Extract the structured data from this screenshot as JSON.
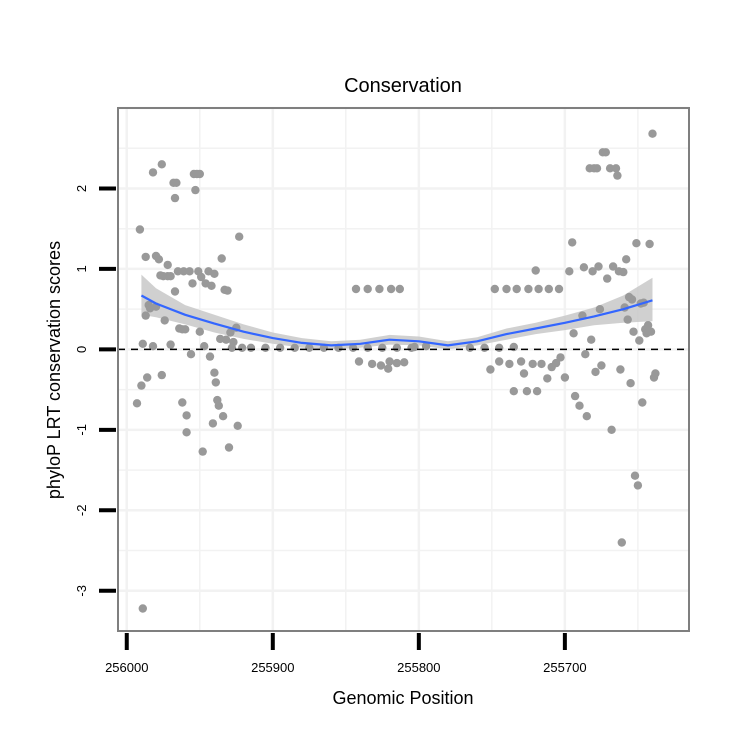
{
  "chart_data": {
    "type": "scatter",
    "title": "Conservation",
    "xlabel": "Genomic Position",
    "ylabel": "phyloP LRT conservation scores",
    "xlim": [
      256006,
      255615
    ],
    "x_reversed": true,
    "ylim": [
      -3.5,
      3.0
    ],
    "x_ticks": [
      256000,
      255900,
      255800,
      255700
    ],
    "y_ticks": [
      -3,
      -2,
      -1,
      0,
      1,
      2
    ],
    "grid": true,
    "reference_line": {
      "y": 0,
      "style": "dashed",
      "color": "#000000"
    },
    "colors": {
      "points": "#999999",
      "smooth": "#3366ff",
      "ribbon": "#c8c8c8",
      "panel_border": "#7f7f7f",
      "grid": "#f2f2f2"
    },
    "smooth_curve": {
      "x": [
        255990,
        255980,
        255960,
        255940,
        255920,
        255900,
        255880,
        255860,
        255840,
        255820,
        255800,
        255780,
        255760,
        255740,
        255720,
        255700,
        255680,
        255660,
        255640
      ],
      "y": [
        0.67,
        0.57,
        0.43,
        0.32,
        0.22,
        0.14,
        0.08,
        0.05,
        0.07,
        0.12,
        0.1,
        0.05,
        0.1,
        0.19,
        0.26,
        0.33,
        0.41,
        0.5,
        0.61
      ],
      "lower": [
        0.43,
        0.4,
        0.31,
        0.21,
        0.13,
        0.07,
        0.02,
        0.0,
        0.02,
        0.06,
        0.05,
        0.0,
        0.05,
        0.12,
        0.19,
        0.24,
        0.3,
        0.33,
        0.35
      ],
      "upper": [
        0.93,
        0.76,
        0.55,
        0.43,
        0.31,
        0.21,
        0.14,
        0.1,
        0.12,
        0.18,
        0.16,
        0.1,
        0.15,
        0.26,
        0.33,
        0.42,
        0.52,
        0.67,
        0.89
      ]
    },
    "points": [
      {
        "x": 255993,
        "y": -0.67
      },
      {
        "x": 255991,
        "y": 1.49
      },
      {
        "x": 255990,
        "y": -0.45
      },
      {
        "x": 255989,
        "y": 0.07
      },
      {
        "x": 255989,
        "y": -3.22
      },
      {
        "x": 255987,
        "y": 1.15
      },
      {
        "x": 255987,
        "y": 0.42
      },
      {
        "x": 255986,
        "y": -0.35
      },
      {
        "x": 255985,
        "y": 0.55
      },
      {
        "x": 255984,
        "y": 0.51
      },
      {
        "x": 255982,
        "y": 2.2
      },
      {
        "x": 255982,
        "y": 0.04
      },
      {
        "x": 255980,
        "y": 1.16
      },
      {
        "x": 255980,
        "y": 0.53
      },
      {
        "x": 255978,
        "y": 1.12
      },
      {
        "x": 255977,
        "y": 0.92
      },
      {
        "x": 255976,
        "y": 2.3
      },
      {
        "x": 255976,
        "y": -0.32
      },
      {
        "x": 255975,
        "y": 0.91
      },
      {
        "x": 255974,
        "y": 0.36
      },
      {
        "x": 255972,
        "y": 0.91
      },
      {
        "x": 255972,
        "y": 1.05
      },
      {
        "x": 255970,
        "y": 0.91
      },
      {
        "x": 255970,
        "y": 0.06
      },
      {
        "x": 255968,
        "y": 2.07
      },
      {
        "x": 255967,
        "y": 1.88
      },
      {
        "x": 255967,
        "y": 0.72
      },
      {
        "x": 255966,
        "y": 2.07
      },
      {
        "x": 255965,
        "y": 0.97
      },
      {
        "x": 255964,
        "y": 0.26
      },
      {
        "x": 255962,
        "y": 0.25
      },
      {
        "x": 255962,
        "y": -0.66
      },
      {
        "x": 255961,
        "y": 0.97
      },
      {
        "x": 255960,
        "y": 0.25
      },
      {
        "x": 255959,
        "y": -1.03
      },
      {
        "x": 255959,
        "y": -0.82
      },
      {
        "x": 255957,
        "y": 0.97
      },
      {
        "x": 255956,
        "y": -0.06
      },
      {
        "x": 255955,
        "y": 0.82
      },
      {
        "x": 255954,
        "y": 2.18
      },
      {
        "x": 255953,
        "y": 1.98
      },
      {
        "x": 255952,
        "y": 2.18
      },
      {
        "x": 255951,
        "y": 0.97
      },
      {
        "x": 255950,
        "y": 2.18
      },
      {
        "x": 255950,
        "y": 0.22
      },
      {
        "x": 255949,
        "y": 0.9
      },
      {
        "x": 255948,
        "y": -1.27
      },
      {
        "x": 255947,
        "y": 0.04
      },
      {
        "x": 255946,
        "y": 0.82
      },
      {
        "x": 255944,
        "y": 0.97
      },
      {
        "x": 255943,
        "y": -0.09
      },
      {
        "x": 255942,
        "y": 0.79
      },
      {
        "x": 255941,
        "y": -0.92
      },
      {
        "x": 255940,
        "y": 0.94
      },
      {
        "x": 255940,
        "y": -0.29
      },
      {
        "x": 255939,
        "y": -0.41
      },
      {
        "x": 255938,
        "y": -0.63
      },
      {
        "x": 255937,
        "y": -0.7
      },
      {
        "x": 255936,
        "y": 0.13
      },
      {
        "x": 255935,
        "y": 1.13
      },
      {
        "x": 255934,
        "y": -0.83
      },
      {
        "x": 255933,
        "y": 0.74
      },
      {
        "x": 255932,
        "y": 0.12
      },
      {
        "x": 255931,
        "y": 0.73
      },
      {
        "x": 255930,
        "y": -1.22
      },
      {
        "x": 255929,
        "y": 0.21
      },
      {
        "x": 255928,
        "y": 0.02
      },
      {
        "x": 255927,
        "y": 0.09
      },
      {
        "x": 255925,
        "y": 0.27
      },
      {
        "x": 255924,
        "y": -0.95
      },
      {
        "x": 255923,
        "y": 1.4
      },
      {
        "x": 255921,
        "y": 0.02
      },
      {
        "x": 255915,
        "y": 0.02
      },
      {
        "x": 255905,
        "y": 0.02
      },
      {
        "x": 255895,
        "y": 0.02
      },
      {
        "x": 255885,
        "y": 0.02
      },
      {
        "x": 255875,
        "y": 0.02
      },
      {
        "x": 255865,
        "y": 0.02
      },
      {
        "x": 255855,
        "y": 0.02
      },
      {
        "x": 255845,
        "y": 0.02
      },
      {
        "x": 255835,
        "y": 0.02
      },
      {
        "x": 255825,
        "y": 0.02
      },
      {
        "x": 255815,
        "y": 0.02
      },
      {
        "x": 255805,
        "y": 0.02
      },
      {
        "x": 255843,
        "y": 0.75
      },
      {
        "x": 255835,
        "y": 0.75
      },
      {
        "x": 255827,
        "y": 0.75
      },
      {
        "x": 255819,
        "y": 0.75
      },
      {
        "x": 255813,
        "y": 0.75
      },
      {
        "x": 255841,
        "y": -0.15
      },
      {
        "x": 255832,
        "y": -0.18
      },
      {
        "x": 255826,
        "y": -0.2
      },
      {
        "x": 255820,
        "y": -0.15
      },
      {
        "x": 255815,
        "y": -0.17
      },
      {
        "x": 255810,
        "y": -0.16
      },
      {
        "x": 255821,
        "y": -0.24
      },
      {
        "x": 255803,
        "y": 0.03
      },
      {
        "x": 255795,
        "y": 0.04
      },
      {
        "x": 255765,
        "y": 0.02
      },
      {
        "x": 255755,
        "y": 0.02
      },
      {
        "x": 255745,
        "y": 0.02
      },
      {
        "x": 255735,
        "y": 0.03
      },
      {
        "x": 255748,
        "y": 0.75
      },
      {
        "x": 255740,
        "y": 0.75
      },
      {
        "x": 255733,
        "y": 0.75
      },
      {
        "x": 255725,
        "y": 0.75
      },
      {
        "x": 255718,
        "y": 0.75
      },
      {
        "x": 255711,
        "y": 0.75
      },
      {
        "x": 255704,
        "y": 0.75
      },
      {
        "x": 255751,
        "y": -0.25
      },
      {
        "x": 255745,
        "y": -0.15
      },
      {
        "x": 255738,
        "y": -0.18
      },
      {
        "x": 255735,
        "y": -0.52
      },
      {
        "x": 255730,
        "y": -0.15
      },
      {
        "x": 255728,
        "y": -0.3
      },
      {
        "x": 255726,
        "y": -0.52
      },
      {
        "x": 255722,
        "y": -0.18
      },
      {
        "x": 255719,
        "y": -0.52
      },
      {
        "x": 255716,
        "y": -0.18
      },
      {
        "x": 255720,
        "y": 0.98
      },
      {
        "x": 255712,
        "y": -0.36
      },
      {
        "x": 255709,
        "y": -0.22
      },
      {
        "x": 255706,
        "y": -0.17
      },
      {
        "x": 255703,
        "y": -0.1
      },
      {
        "x": 255700,
        "y": -0.35
      },
      {
        "x": 255697,
        "y": 0.97
      },
      {
        "x": 255695,
        "y": 1.33
      },
      {
        "x": 255694,
        "y": 0.2
      },
      {
        "x": 255693,
        "y": -0.58
      },
      {
        "x": 255690,
        "y": -0.7
      },
      {
        "x": 255688,
        "y": 0.42
      },
      {
        "x": 255687,
        "y": 1.02
      },
      {
        "x": 255686,
        "y": -0.06
      },
      {
        "x": 255685,
        "y": -0.83
      },
      {
        "x": 255683,
        "y": 2.25
      },
      {
        "x": 255682,
        "y": 0.12
      },
      {
        "x": 255681,
        "y": 0.97
      },
      {
        "x": 255680,
        "y": 2.25
      },
      {
        "x": 255679,
        "y": -0.28
      },
      {
        "x": 255678,
        "y": 2.25
      },
      {
        "x": 255677,
        "y": 1.03
      },
      {
        "x": 255676,
        "y": 0.5
      },
      {
        "x": 255675,
        "y": -0.2
      },
      {
        "x": 255674,
        "y": 2.45
      },
      {
        "x": 255672,
        "y": 2.45
      },
      {
        "x": 255671,
        "y": 0.88
      },
      {
        "x": 255669,
        "y": 2.25
      },
      {
        "x": 255668,
        "y": -1.0
      },
      {
        "x": 255667,
        "y": 1.03
      },
      {
        "x": 255665,
        "y": 2.25
      },
      {
        "x": 255664,
        "y": 2.16
      },
      {
        "x": 255663,
        "y": 0.97
      },
      {
        "x": 255662,
        "y": -0.25
      },
      {
        "x": 255661,
        "y": -2.4
      },
      {
        "x": 255660,
        "y": 0.96
      },
      {
        "x": 255659,
        "y": 0.52
      },
      {
        "x": 255658,
        "y": 1.12
      },
      {
        "x": 255657,
        "y": 0.37
      },
      {
        "x": 255656,
        "y": 0.65
      },
      {
        "x": 255655,
        "y": -0.42
      },
      {
        "x": 255654,
        "y": 0.62
      },
      {
        "x": 255653,
        "y": 0.22
      },
      {
        "x": 255652,
        "y": -1.57
      },
      {
        "x": 255651,
        "y": 1.32
      },
      {
        "x": 255650,
        "y": -1.69
      },
      {
        "x": 255649,
        "y": 0.11
      },
      {
        "x": 255648,
        "y": 0.57
      },
      {
        "x": 255647,
        "y": -0.66
      },
      {
        "x": 255646,
        "y": 0.58
      },
      {
        "x": 255645,
        "y": 0.25
      },
      {
        "x": 255644,
        "y": 0.2
      },
      {
        "x": 255643,
        "y": 0.3
      },
      {
        "x": 255642,
        "y": 1.31
      },
      {
        "x": 255641,
        "y": 0.22
      },
      {
        "x": 255640,
        "y": 2.68
      },
      {
        "x": 255639,
        "y": -0.35
      },
      {
        "x": 255638,
        "y": -0.3
      }
    ]
  }
}
